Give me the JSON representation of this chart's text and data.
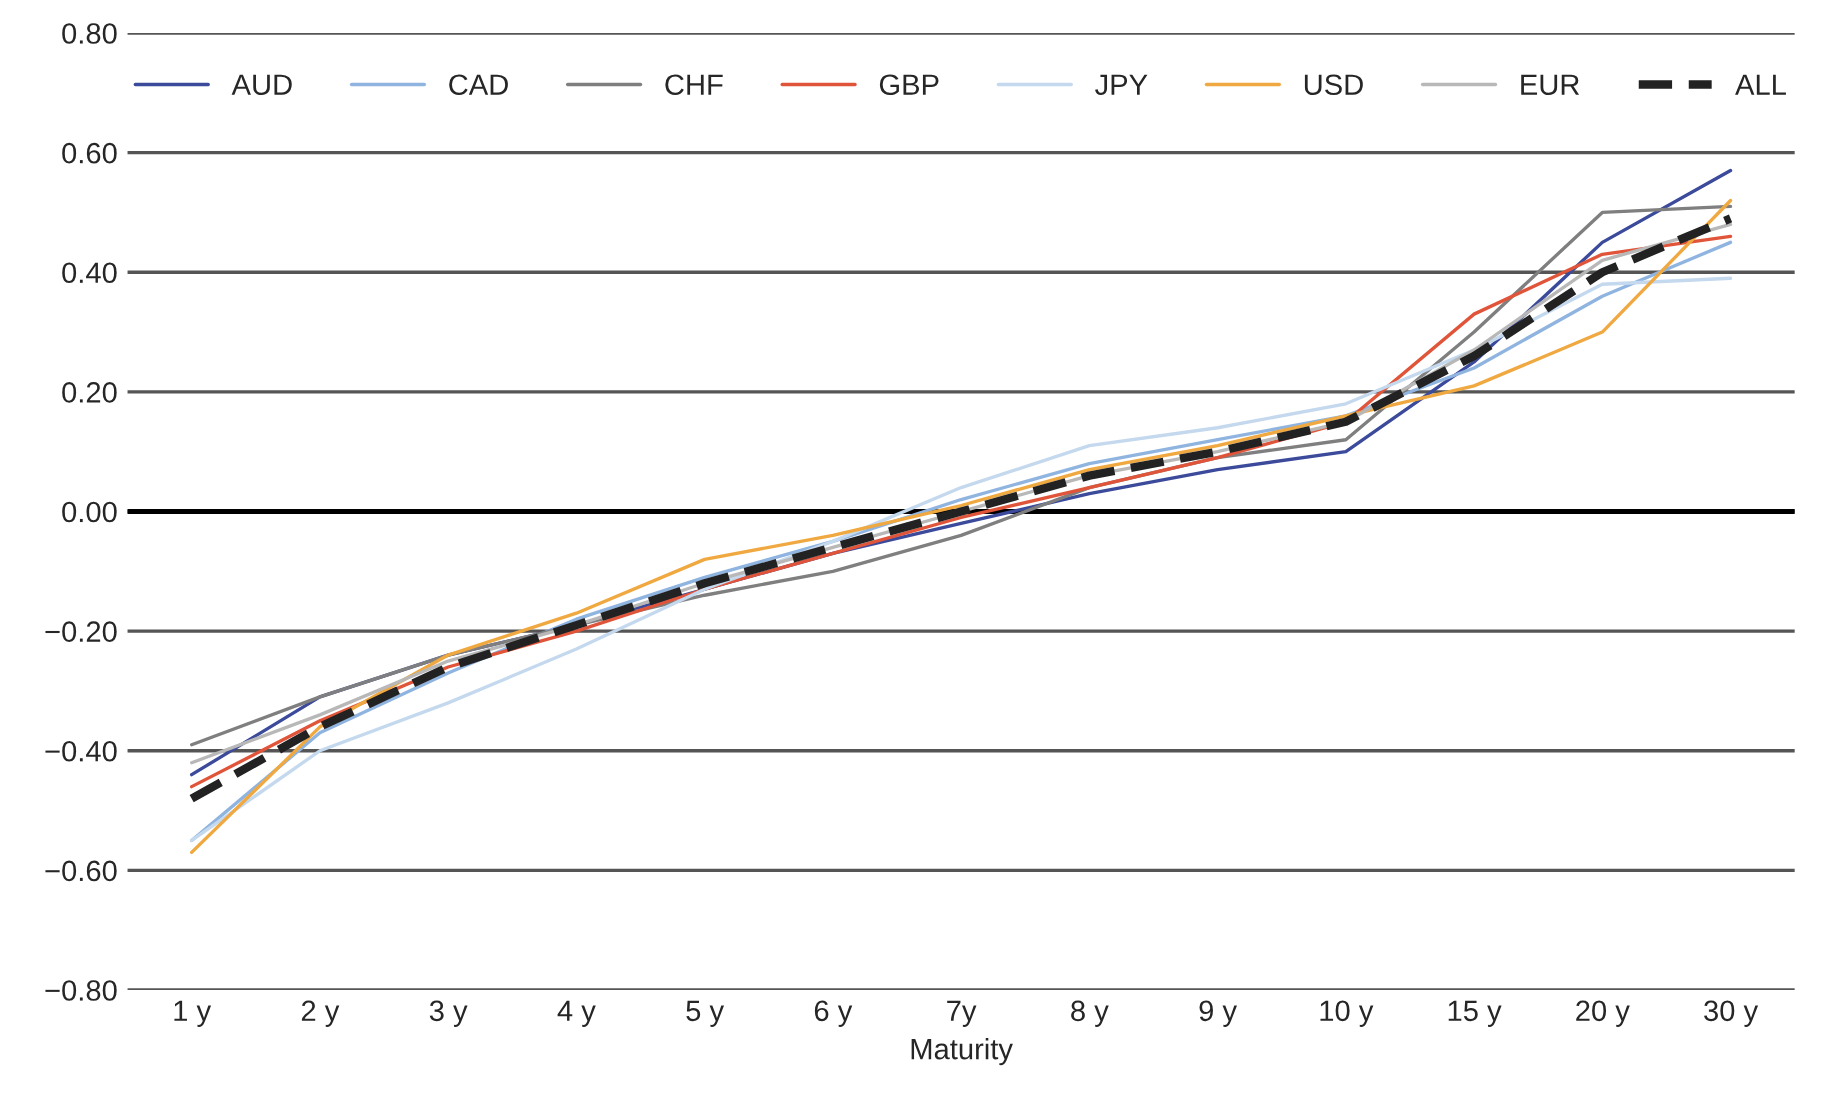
{
  "chart_data": {
    "type": "line",
    "xlabel": "Maturity",
    "categories": [
      "1 y",
      "2 y",
      "3 y",
      "4 y",
      "5 y",
      "6 y",
      "7y",
      "8 y",
      "9 y",
      "10 y",
      "15 y",
      "20 y",
      "30 y"
    ],
    "series": [
      {
        "name": "AUD",
        "color": "#3b4a9a",
        "values": [
          -0.44,
          -0.31,
          -0.24,
          -0.19,
          -0.13,
          -0.07,
          -0.02,
          0.03,
          0.07,
          0.1,
          0.25,
          0.45,
          0.57
        ]
      },
      {
        "name": "CAD",
        "color": "#8fb4e0",
        "values": [
          -0.55,
          -0.37,
          -0.27,
          -0.18,
          -0.11,
          -0.05,
          0.02,
          0.08,
          0.12,
          0.16,
          0.24,
          0.36,
          0.45
        ]
      },
      {
        "name": "CHF",
        "color": "#7f7f7f",
        "values": [
          -0.39,
          -0.31,
          -0.24,
          -0.19,
          -0.14,
          -0.1,
          -0.04,
          0.04,
          0.09,
          0.12,
          0.3,
          0.5,
          0.51
        ]
      },
      {
        "name": "GBP",
        "color": "#e0553a",
        "values": [
          -0.46,
          -0.35,
          -0.26,
          -0.2,
          -0.13,
          -0.07,
          -0.01,
          0.04,
          0.09,
          0.15,
          0.33,
          0.43,
          0.46
        ]
      },
      {
        "name": "JPY",
        "color": "#c4d8ee",
        "values": [
          -0.55,
          -0.4,
          -0.32,
          -0.23,
          -0.13,
          -0.05,
          0.04,
          0.11,
          0.14,
          0.18,
          0.27,
          0.38,
          0.39
        ]
      },
      {
        "name": "USD",
        "color": "#f0a840",
        "values": [
          -0.57,
          -0.36,
          -0.24,
          -0.17,
          -0.08,
          -0.04,
          0.01,
          0.07,
          0.11,
          0.16,
          0.21,
          0.3,
          0.52
        ]
      },
      {
        "name": "EUR",
        "color": "#b8b8b8",
        "values": [
          -0.42,
          -0.34,
          -0.25,
          -0.19,
          -0.12,
          -0.06,
          0.0,
          0.06,
          0.1,
          0.15,
          0.27,
          0.42,
          0.48
        ]
      },
      {
        "name": "ALL",
        "color": "#222222",
        "line_style": "dashed",
        "values": [
          -0.48,
          -0.36,
          -0.26,
          -0.19,
          -0.12,
          -0.06,
          0.0,
          0.06,
          0.1,
          0.15,
          0.26,
          0.4,
          0.49
        ]
      }
    ],
    "ylim": [
      -0.8,
      0.8
    ],
    "yticks": [
      {
        "value": -0.8,
        "label": "−0.80"
      },
      {
        "value": -0.6,
        "label": "−0.60"
      },
      {
        "value": -0.4,
        "label": "−0.40"
      },
      {
        "value": -0.2,
        "label": "−0.20"
      },
      {
        "value": 0,
        "label": "0.00"
      },
      {
        "value": 0.2,
        "label": "0.20"
      },
      {
        "value": 0.4,
        "label": "0.40"
      },
      {
        "value": 0.6,
        "label": "0.60"
      },
      {
        "value": 0.8,
        "label": "0.80"
      }
    ],
    "ref_lines": [
      {
        "axis": "y",
        "value": 0,
        "color": "#000000"
      }
    ],
    "grid": "y",
    "legend": "top",
    "line_style": "solid"
  }
}
